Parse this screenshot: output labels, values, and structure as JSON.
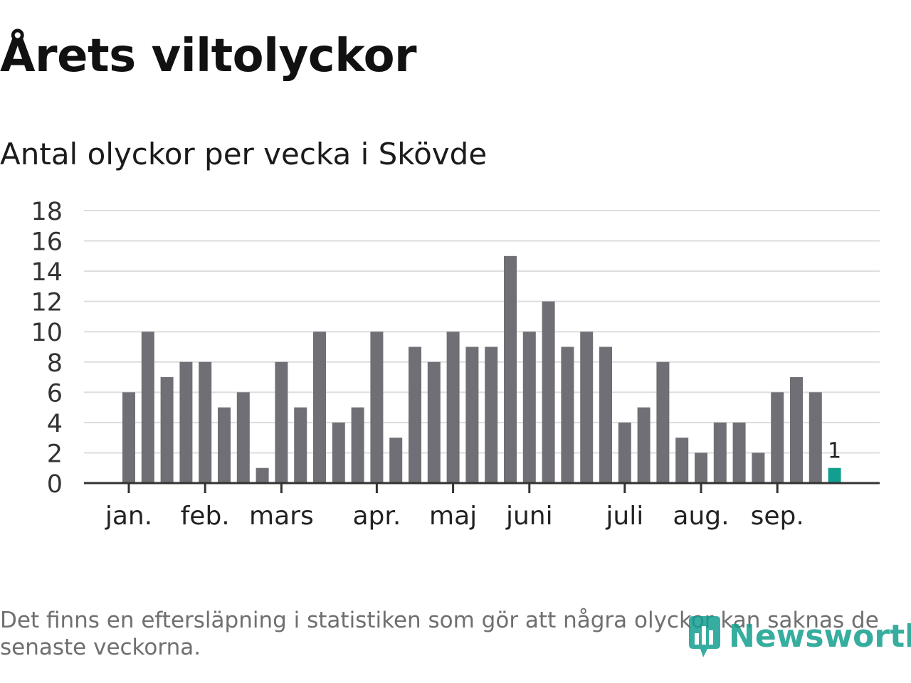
{
  "title": "Årets viltolyckor",
  "subtitle": "Antal olyckor per vecka i Skövde",
  "footnote": "Det finns en eftersläpning i statistiken som gör att några olyckor kan saknas de senaste veckorna.",
  "logo": {
    "text": "Newsworthy",
    "icon": "newsworthy-bars-icon",
    "color": "#139f8f"
  },
  "chart_data": {
    "type": "bar",
    "title": "Antal olyckor per vecka i Skövde",
    "xlabel": "",
    "ylabel": "",
    "ylim": [
      0,
      18
    ],
    "yticks": [
      0,
      2,
      4,
      6,
      8,
      10,
      12,
      14,
      16,
      18
    ],
    "grid": true,
    "legend": "none",
    "month_labels": [
      {
        "label": "jan.",
        "week_index": 0
      },
      {
        "label": "feb.",
        "week_index": 4
      },
      {
        "label": "mars",
        "week_index": 8
      },
      {
        "label": "apr.",
        "week_index": 13
      },
      {
        "label": "maj",
        "week_index": 17
      },
      {
        "label": "juni",
        "week_index": 21
      },
      {
        "label": "juli",
        "week_index": 26
      },
      {
        "label": "aug.",
        "week_index": 30
      },
      {
        "label": "sep.",
        "week_index": 34
      }
    ],
    "values": [
      6,
      10,
      7,
      8,
      8,
      5,
      6,
      1,
      8,
      5,
      10,
      4,
      5,
      10,
      3,
      9,
      8,
      10,
      9,
      9,
      15,
      10,
      12,
      9,
      10,
      9,
      4,
      5,
      8,
      3,
      2,
      4,
      4,
      2,
      6,
      7,
      6,
      1
    ],
    "bar_color": "#706f75",
    "highlight_color": "#139f8f",
    "highlight_index": 37,
    "highlight_label": "1"
  }
}
